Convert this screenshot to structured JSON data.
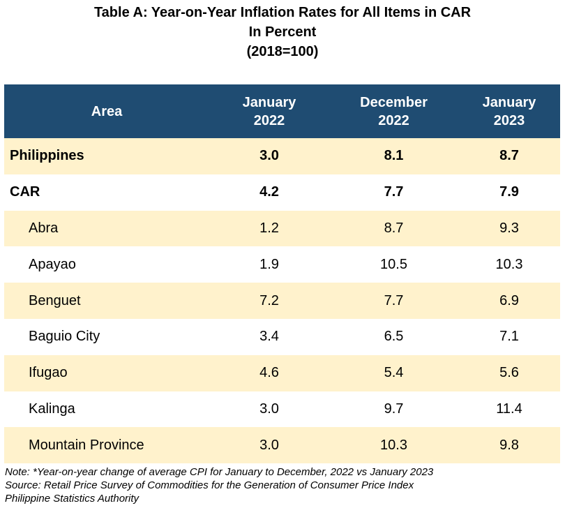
{
  "title": {
    "line1": "Table A: Year-on-Year Inflation Rates for All Items in CAR",
    "line2": "In Percent",
    "line3": "(2018=100)"
  },
  "table": {
    "headers": [
      {
        "l1": "Area",
        "l2": ""
      },
      {
        "l1": "January",
        "l2": "2022"
      },
      {
        "l1": "December",
        "l2": "2022"
      },
      {
        "l1": "January",
        "l2": "2023"
      }
    ],
    "rows": [
      {
        "area": "Philippines",
        "jan2022": "3.0",
        "dec2022": "8.1",
        "jan2023": "8.7"
      },
      {
        "area": "CAR",
        "jan2022": "4.2",
        "dec2022": "7.7",
        "jan2023": "7.9"
      },
      {
        "area": "Abra",
        "jan2022": "1.2",
        "dec2022": "8.7",
        "jan2023": "9.3"
      },
      {
        "area": "Apayao",
        "jan2022": "1.9",
        "dec2022": "10.5",
        "jan2023": "10.3"
      },
      {
        "area": "Benguet",
        "jan2022": "7.2",
        "dec2022": "7.7",
        "jan2023": "6.9"
      },
      {
        "area": "Baguio City",
        "jan2022": "3.4",
        "dec2022": "6.5",
        "jan2023": "7.1"
      },
      {
        "area": "Ifugao",
        "jan2022": "4.6",
        "dec2022": "5.4",
        "jan2023": "5.6"
      },
      {
        "area": "Kalinga",
        "jan2022": "3.0",
        "dec2022": "9.7",
        "jan2023": "11.4"
      },
      {
        "area": "Mountain Province",
        "jan2022": "3.0",
        "dec2022": "10.3",
        "jan2023": "9.8"
      }
    ]
  },
  "notes": {
    "note": "Note: *Year-on-year change of average CPI for January to December, 2022 vs January 2023",
    "source": "Source: Retail Price Survey of Commodities for the Generation of Consumer Price Index",
    "agency": "Philippine Statistics Authority"
  },
  "colors": {
    "header_bg": "#1f4c72",
    "stripe_bg": "#fff2cc"
  }
}
